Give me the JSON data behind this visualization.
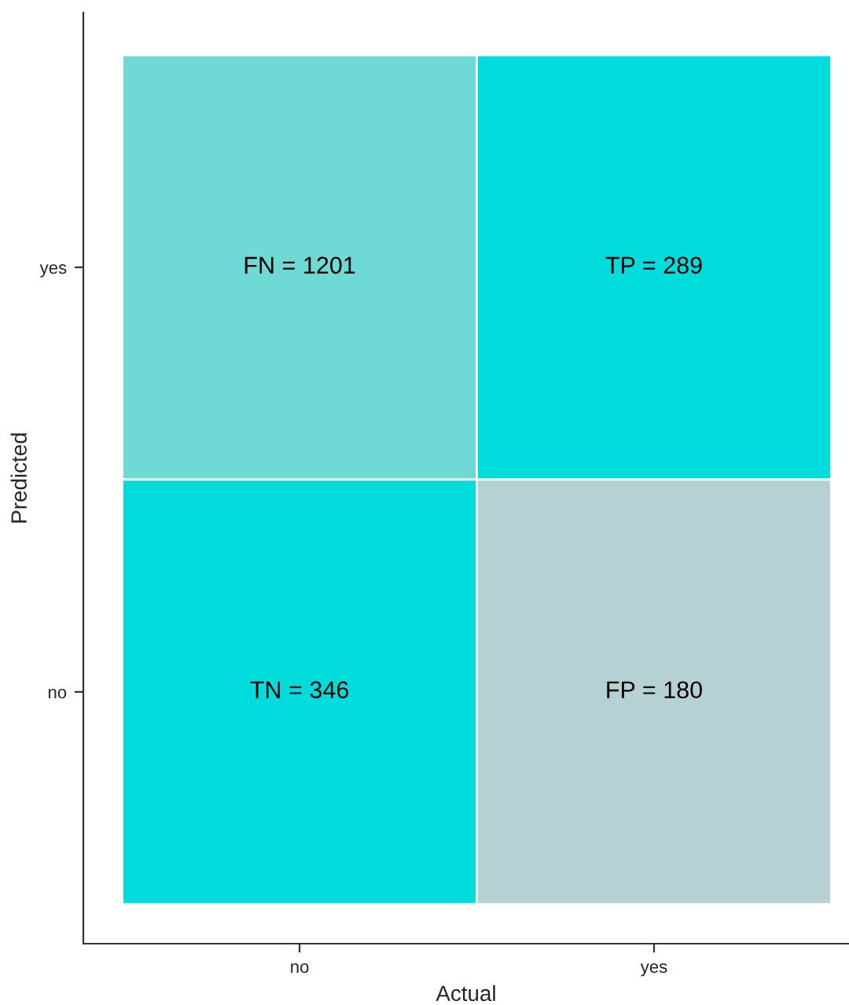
{
  "chart_data": {
    "type": "heatmap",
    "xlabel": "Actual",
    "ylabel": "Predicted",
    "categories": [
      "no",
      "yes"
    ],
    "y_categories": [
      "yes",
      "no"
    ],
    "cells": [
      [
        1201,
        289
      ],
      [
        346,
        180
      ]
    ],
    "cell_labels": [
      [
        "FN = 1201",
        "TP = 289"
      ],
      [
        "TN = 346",
        "FP = 180"
      ]
    ],
    "colors": [
      [
        "#6fd9d6",
        "#00dbdb"
      ],
      [
        "#00dbdb",
        "#b5d1d3"
      ]
    ],
    "grid": false
  }
}
